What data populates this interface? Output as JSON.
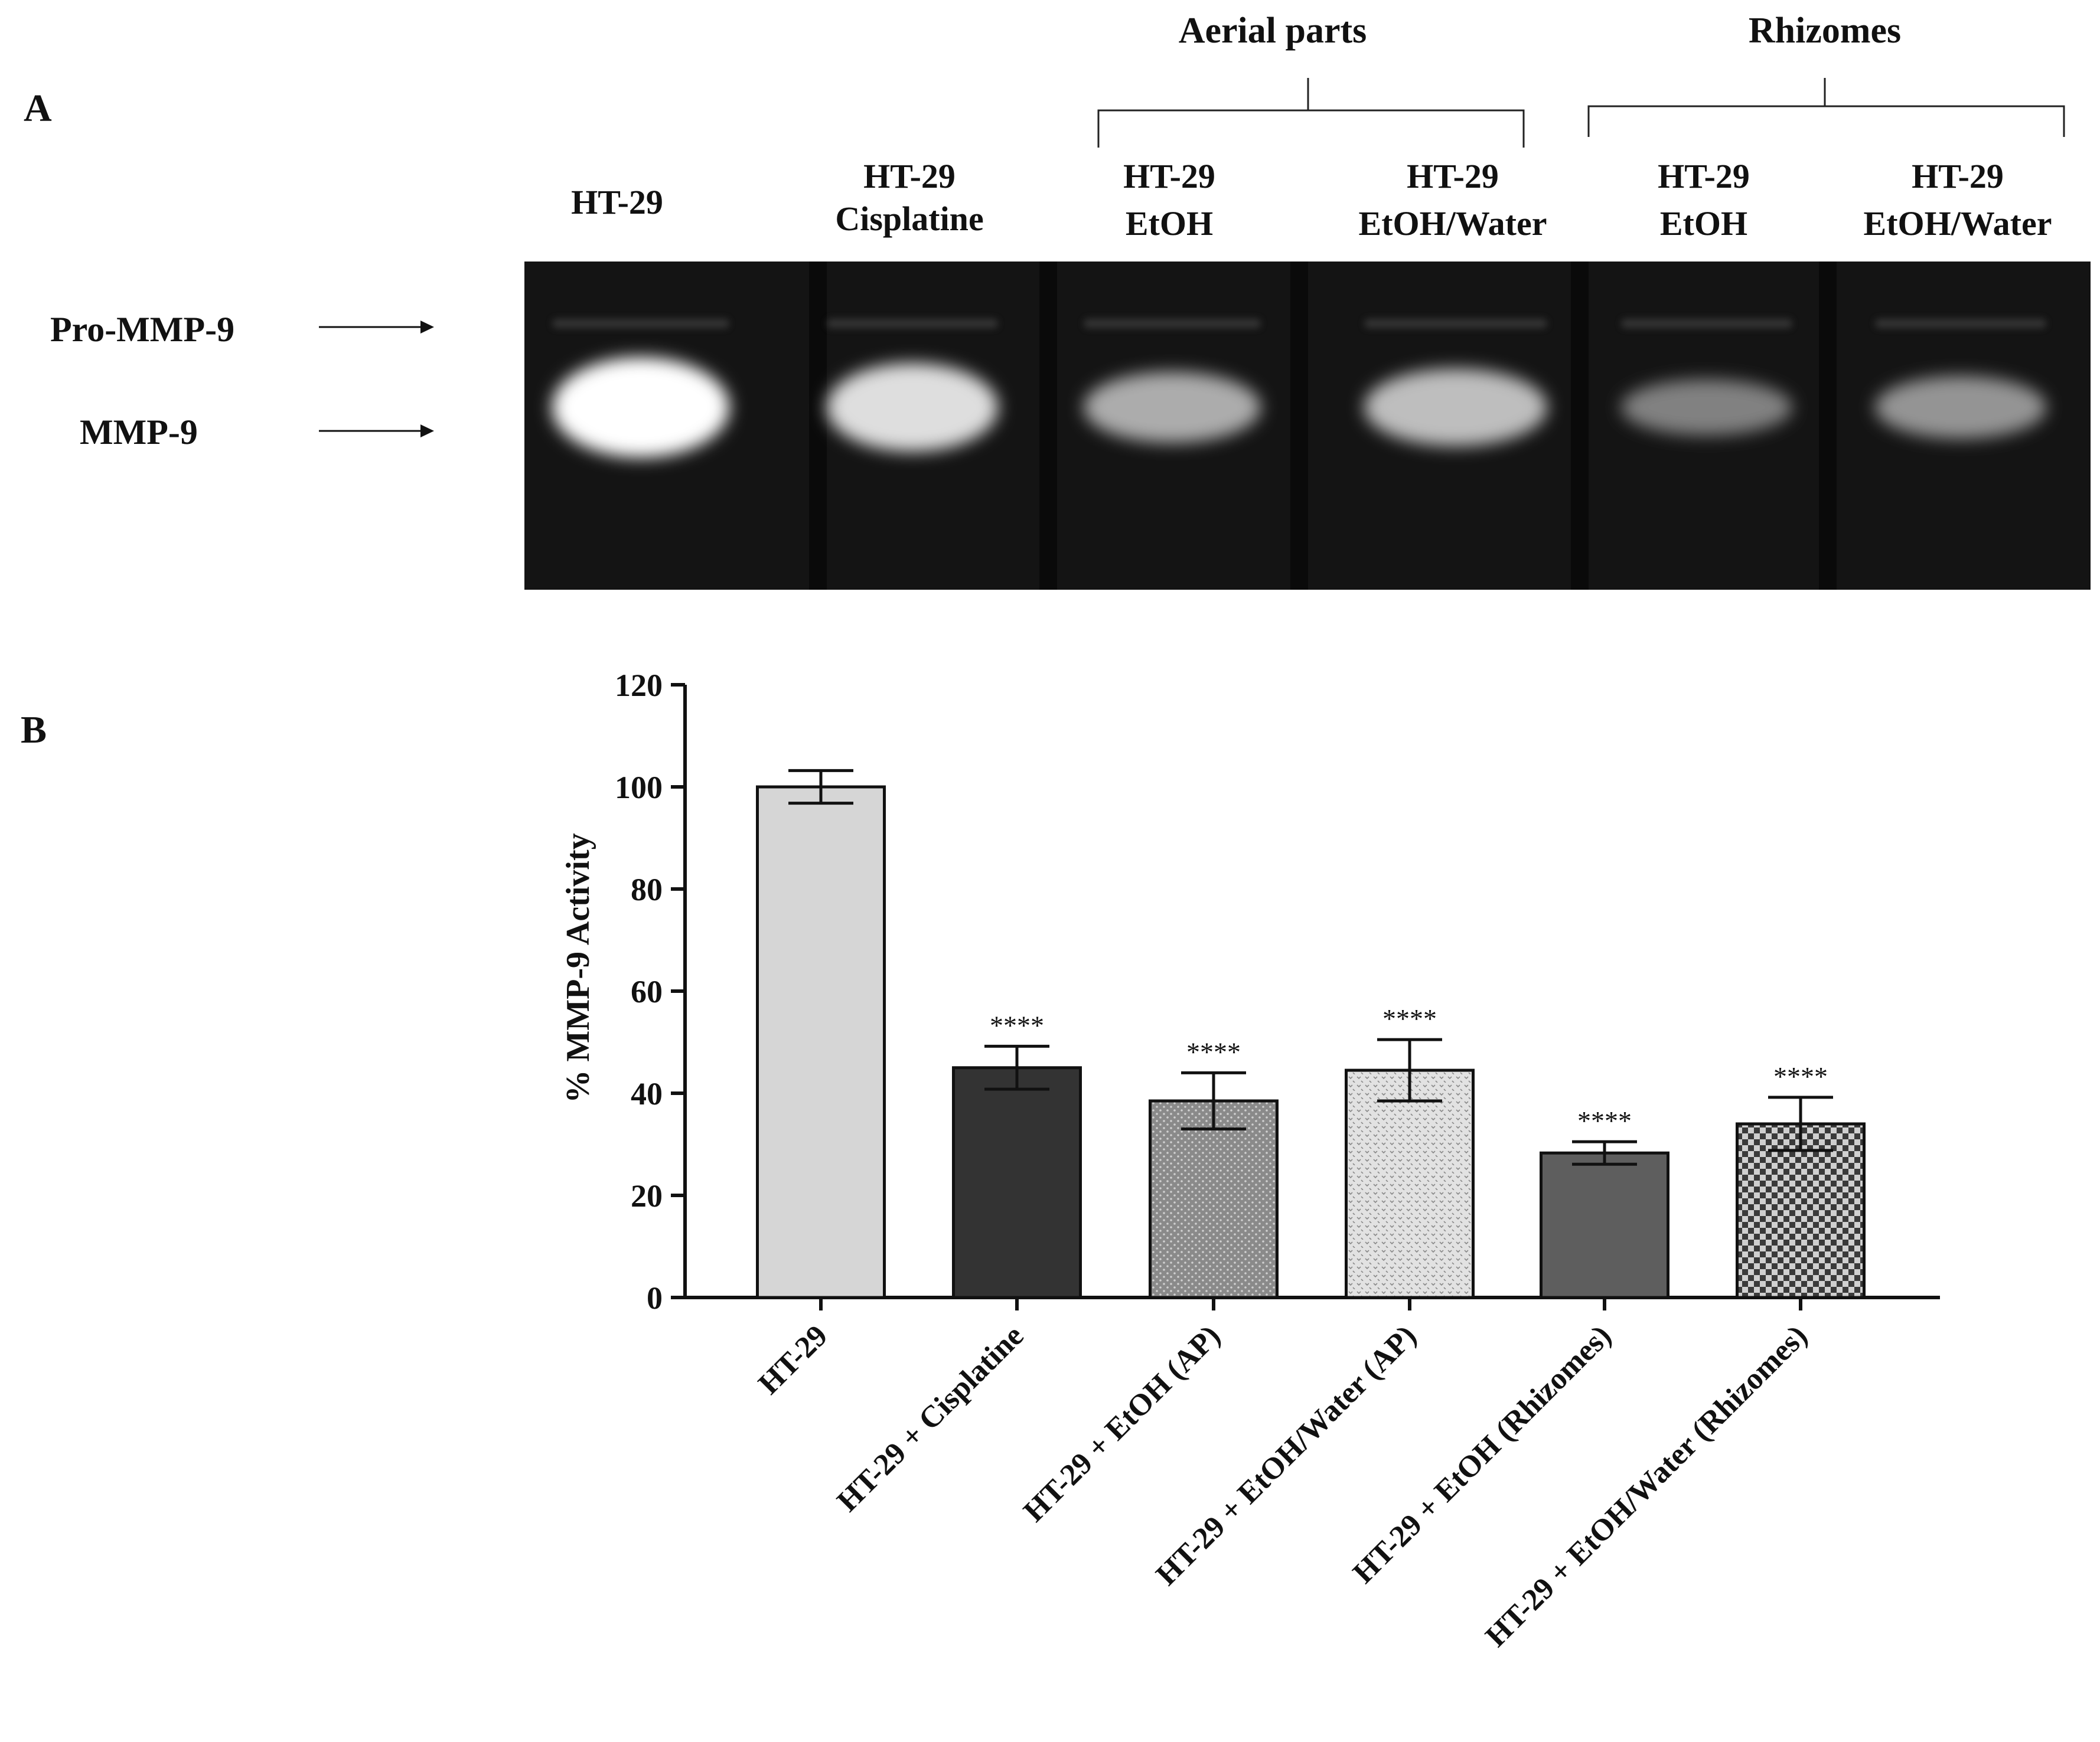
{
  "panel_a": {
    "label": "A",
    "groups": [
      {
        "label": "Aerial parts"
      },
      {
        "label": "Rhizomes"
      }
    ],
    "lanes": [
      {
        "line1": "HT-29",
        "line2": ""
      },
      {
        "line1": "HT-29",
        "line2": "Cisplatine"
      },
      {
        "line1": "HT-29",
        "line2": "EtOH"
      },
      {
        "line1": "HT-29",
        "line2": "EtOH/Water"
      },
      {
        "line1": "HT-29",
        "line2": "EtOH"
      },
      {
        "line1": "HT-29",
        "line2": "EtOH/Water"
      }
    ],
    "bands": [
      {
        "label": "Pro-MMP-9"
      },
      {
        "label": "MMP-9"
      }
    ],
    "band_intensity": [
      1.0,
      0.82,
      0.55,
      0.65,
      0.32,
      0.42
    ]
  },
  "chart_data": {
    "type": "bar",
    "panel_label": "B",
    "title": "",
    "xlabel": "",
    "ylabel": "% MMP-9 Activity",
    "ylim": [
      0,
      120
    ],
    "yticks": [
      "0",
      "20",
      "40",
      "60",
      "80",
      "100",
      "120"
    ],
    "categories": [
      "HT-29",
      "HT-29 + Cisplatine",
      "HT-29 + EtOH (AP)",
      "HT-29 + EtOH/Water (AP)",
      "HT-29 + EtOH (Rhizomes)",
      "HT-29 + EtOH/Water (Rhizomes)"
    ],
    "values": [
      100,
      45,
      38.5,
      44.5,
      28.3,
      34
    ],
    "errors": [
      3.2,
      4.2,
      5.5,
      6.0,
      2.2,
      5.2
    ],
    "significance": [
      "",
      "****",
      "****",
      "****",
      "****",
      "****"
    ],
    "fills": [
      "light-gray",
      "dark",
      "dotted",
      "light-dotted",
      "medium-gray",
      "checkered"
    ],
    "grid": false,
    "legend": "none"
  }
}
